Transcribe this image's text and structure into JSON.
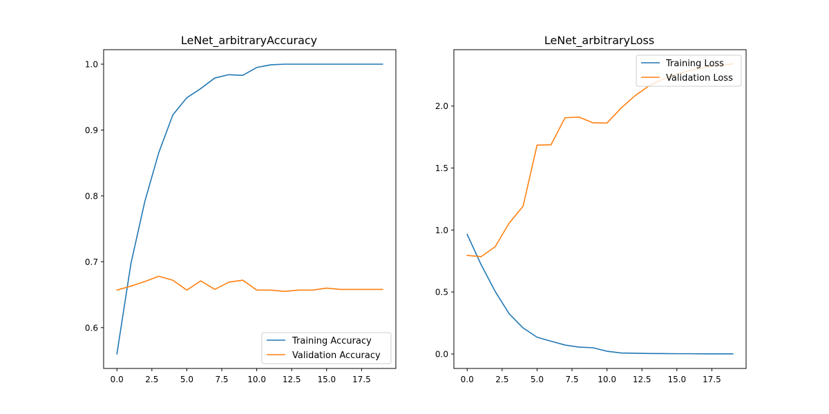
{
  "chart_data": [
    {
      "type": "line",
      "title": "LeNet_arbitraryAccuracy",
      "xlabel": "",
      "ylabel": "",
      "xlim": [
        -0.95,
        19.95
      ],
      "ylim": [
        0.538,
        1.022
      ],
      "xticks": [
        0,
        2.5,
        5,
        7.5,
        10,
        12.5,
        15,
        17.5
      ],
      "xtick_labels": [
        "0.0",
        "2.5",
        "5.0",
        "7.5",
        "10.0",
        "12.5",
        "15.0",
        "17.5"
      ],
      "yticks": [
        0.6,
        0.7,
        0.8,
        0.9,
        1.0
      ],
      "ytick_labels": [
        "0.6",
        "0.7",
        "0.8",
        "0.9",
        "1.0"
      ],
      "grid": false,
      "legend_position": "lower-right",
      "x": [
        0,
        1,
        2,
        3,
        4,
        5,
        6,
        7,
        8,
        9,
        10,
        11,
        12,
        13,
        14,
        15,
        16,
        17,
        18,
        19
      ],
      "series": [
        {
          "name": "Training Accuracy",
          "color": "#1f77b4",
          "values": [
            0.56,
            0.697,
            0.792,
            0.866,
            0.923,
            0.949,
            0.963,
            0.979,
            0.984,
            0.983,
            0.995,
            0.999,
            1.0,
            1.0,
            1.0,
            1.0,
            1.0,
            1.0,
            1.0,
            1.0
          ]
        },
        {
          "name": "Validation Accuracy",
          "color": "#ff7f0e",
          "values": [
            0.657,
            0.663,
            0.67,
            0.678,
            0.672,
            0.657,
            0.671,
            0.658,
            0.669,
            0.672,
            0.657,
            0.657,
            0.655,
            0.657,
            0.657,
            0.66,
            0.658,
            0.658,
            0.658,
            0.658
          ]
        }
      ]
    },
    {
      "type": "line",
      "title": "LeNet_arbitraryLoss",
      "xlabel": "",
      "ylabel": "",
      "xlim": [
        -0.95,
        19.95
      ],
      "ylim": [
        -0.117,
        2.455
      ],
      "xticks": [
        0,
        2.5,
        5,
        7.5,
        10,
        12.5,
        15,
        17.5
      ],
      "xtick_labels": [
        "0.0",
        "2.5",
        "5.0",
        "7.5",
        "10.0",
        "12.5",
        "15.0",
        "17.5"
      ],
      "yticks": [
        0.0,
        0.5,
        1.0,
        1.5,
        2.0
      ],
      "ytick_labels": [
        "0.0",
        "0.5",
        "1.0",
        "1.5",
        "2.0"
      ],
      "grid": false,
      "legend_position": "upper-right",
      "x": [
        0,
        1,
        2,
        3,
        4,
        5,
        6,
        7,
        8,
        9,
        10,
        11,
        12,
        13,
        14,
        15,
        16,
        17,
        18,
        19
      ],
      "series": [
        {
          "name": "Training Loss",
          "color": "#1f77b4",
          "values": [
            0.965,
            0.72,
            0.505,
            0.325,
            0.21,
            0.135,
            0.103,
            0.072,
            0.055,
            0.05,
            0.022,
            0.008,
            0.006,
            0.004,
            0.003,
            0.002,
            0.002,
            0.001,
            0.001,
            0.001
          ]
        },
        {
          "name": "Validation Loss",
          "color": "#ff7f0e",
          "values": [
            0.795,
            0.785,
            0.865,
            1.055,
            1.192,
            1.685,
            1.688,
            1.906,
            1.911,
            1.865,
            1.863,
            1.983,
            2.083,
            2.163,
            2.218,
            2.258,
            2.288,
            2.311,
            2.328,
            2.34
          ]
        }
      ]
    }
  ]
}
